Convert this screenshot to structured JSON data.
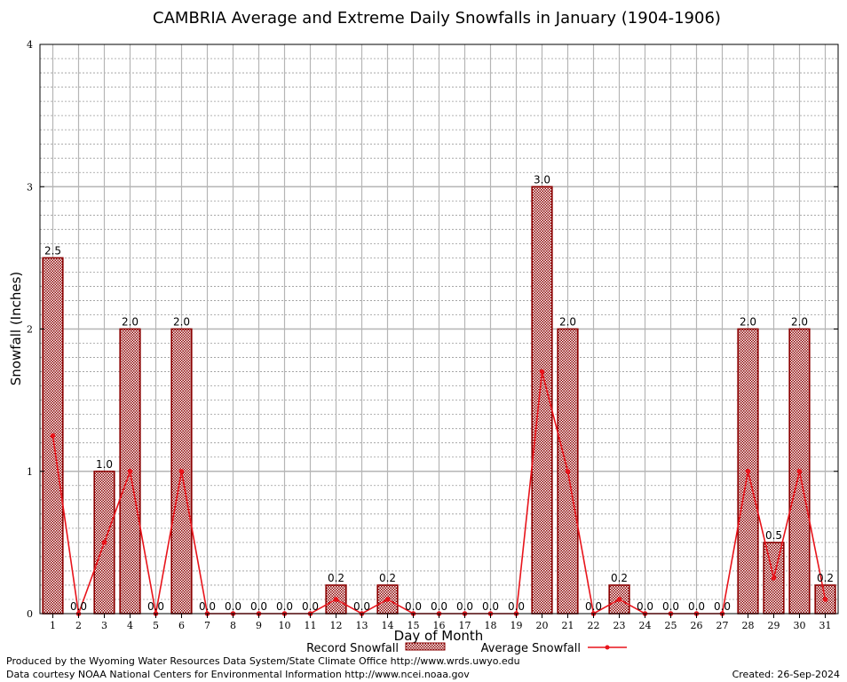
{
  "chart_data": {
    "type": "bar",
    "title": "CAMBRIA Average and Extreme Daily Snowfalls in January (1904-1906)",
    "xlabel": "Day of Month",
    "ylabel": "Snowfall (Inches)",
    "ylim": [
      0,
      4
    ],
    "y_ticks": [
      "0",
      "1",
      "2",
      "3",
      "4"
    ],
    "categories": [
      "1",
      "2",
      "3",
      "4",
      "5",
      "6",
      "7",
      "8",
      "9",
      "10",
      "11",
      "12",
      "13",
      "14",
      "15",
      "16",
      "17",
      "18",
      "19",
      "20",
      "21",
      "22",
      "23",
      "24",
      "25",
      "26",
      "27",
      "28",
      "29",
      "30",
      "31"
    ],
    "series": [
      {
        "name": "Record Snowfall",
        "kind": "bar",
        "color": "#8b0000",
        "values": [
          2.5,
          0.0,
          1.0,
          2.0,
          0.0,
          2.0,
          0.0,
          0.0,
          0.0,
          0.0,
          0.0,
          0.2,
          0.0,
          0.2,
          0.0,
          0.0,
          0.0,
          0.0,
          0.0,
          3.0,
          2.0,
          0.0,
          0.2,
          0.0,
          0.0,
          0.0,
          0.0,
          2.0,
          0.5,
          2.0,
          0.2
        ],
        "labels": [
          "2.5",
          "0.0",
          "1.0",
          "2.0",
          "0.0",
          "2.0",
          "0.0",
          "0.0",
          "0.0",
          "0.0",
          "0.0",
          "0.2",
          "0.0",
          "0.2",
          "0.0",
          "0.0",
          "0.0",
          "0.0",
          "0.0",
          "3.0",
          "2.0",
          "0.0",
          "0.2",
          "0.0",
          "0.0",
          "0.0",
          "0.0",
          "2.0",
          "0.5",
          "2.0",
          "0.2"
        ]
      },
      {
        "name": "Average Snowfall",
        "kind": "line",
        "color": "#e8141b",
        "values": [
          1.25,
          0.0,
          0.5,
          1.0,
          0.0,
          1.0,
          0.0,
          0.0,
          0.0,
          0.0,
          0.0,
          0.1,
          0.0,
          0.1,
          0.0,
          0.0,
          0.0,
          0.0,
          0.0,
          1.7,
          1.0,
          0.0,
          0.1,
          0.0,
          0.0,
          0.0,
          0.0,
          1.0,
          0.25,
          1.0,
          0.1
        ]
      }
    ],
    "grid": true,
    "legend_position": "bottom-center"
  },
  "footer": {
    "produced_by": "Produced by the Wyoming Water Resources Data System/State Climate Office http://www.wrds.uwyo.edu",
    "courtesy": "Data courtesy NOAA National Centers for Environmental Information http://www.ncei.noaa.gov",
    "created": "Created:  26-Sep-2024"
  }
}
